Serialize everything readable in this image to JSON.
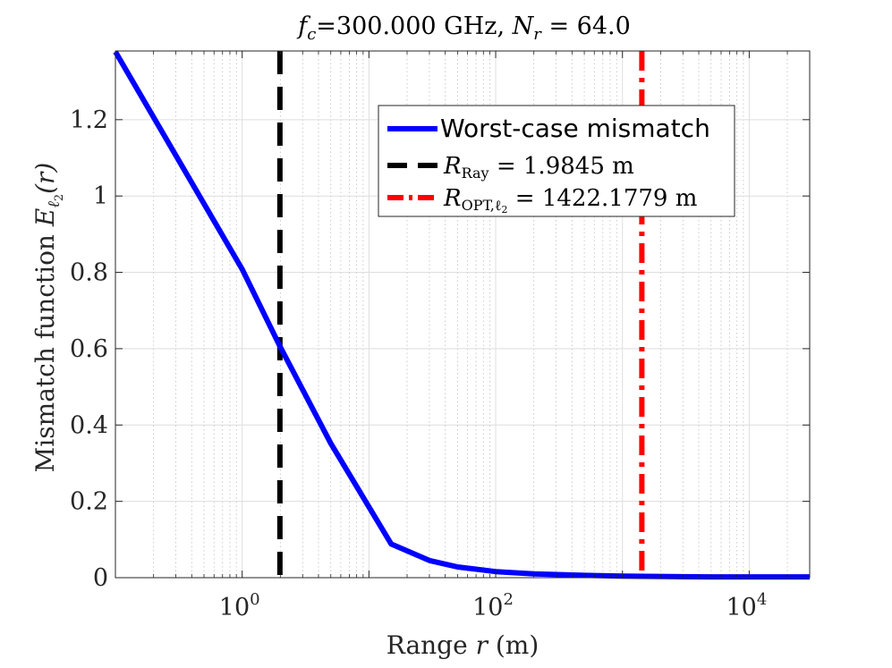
{
  "chart_data": {
    "type": "line",
    "title": {
      "fc_symbol": "f",
      "fc_sub": "c",
      "fc_value": "=300.000 GHz, ",
      "nr_symbol": "N",
      "nr_sub": "r",
      "nr_value": " = 64.0"
    },
    "xlabel": {
      "text": "Range ",
      "symbol": "r",
      "unit": " (m)"
    },
    "ylabel": {
      "text": "Mismatch function ",
      "symbol": "E",
      "sub": "ℓ",
      "subsub": "2",
      "arg": "(r)"
    },
    "x_scale": "log",
    "xlim": [
      0.1,
      30000
    ],
    "ylim": [
      0,
      1.38
    ],
    "grid": true,
    "x_ticks": [
      {
        "value": 1,
        "base": "10",
        "exp": "0"
      },
      {
        "value": 100,
        "base": "10",
        "exp": "2"
      },
      {
        "value": 10000,
        "base": "10",
        "exp": "4"
      }
    ],
    "y_ticks": [
      {
        "value": 0,
        "label": "0"
      },
      {
        "value": 0.2,
        "label": "0.2"
      },
      {
        "value": 0.4,
        "label": "0.4"
      },
      {
        "value": 0.6,
        "label": "0.6"
      },
      {
        "value": 0.8,
        "label": "0.8"
      },
      {
        "value": 1.0,
        "label": "1"
      },
      {
        "value": 1.2,
        "label": "1.2"
      }
    ],
    "series": [
      {
        "name": "Worst-case mismatch",
        "color": "#0000ff",
        "style": "solid",
        "x": [
          0.1,
          1,
          1.98,
          5,
          15,
          30,
          50,
          100,
          200,
          500,
          1000,
          5000,
          30000
        ],
        "y": [
          1.378,
          0.808,
          0.607,
          0.352,
          0.088,
          0.045,
          0.028,
          0.016,
          0.01,
          0.006,
          0.004,
          0.002,
          0.002
        ]
      }
    ],
    "vlines": [
      {
        "name": "R_Ray",
        "x": 1.9845,
        "color": "#000000",
        "style": "dashed",
        "label_symbol": "R",
        "label_sub": "Ray",
        "label_value": " = 1.9845 m"
      },
      {
        "name": "R_OPT",
        "x": 1422.1779,
        "color": "#ff0000",
        "style": "dashdot",
        "label_symbol": "R",
        "label_sub": "OPT,ℓ",
        "label_subsub": "2",
        "label_value": " = 1422.1779 m"
      }
    ],
    "legend_position": "upper-right"
  }
}
